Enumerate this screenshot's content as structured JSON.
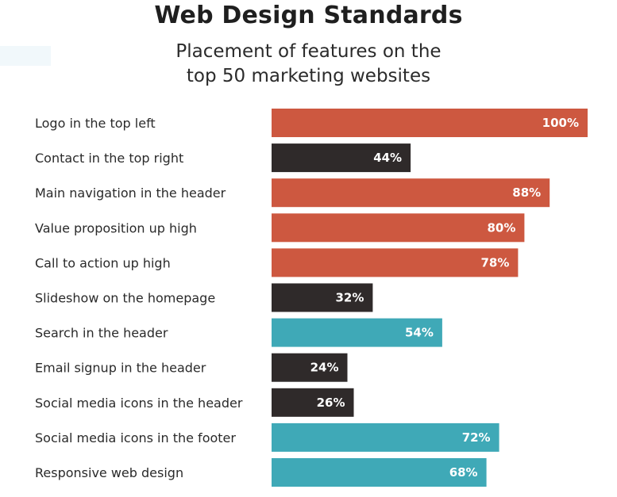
{
  "chart_data": {
    "type": "bar",
    "orientation": "horizontal",
    "title": "Web Design Standards",
    "subtitle_lines": [
      "Placement of features on the",
      "top 50 marketing websites"
    ],
    "categories": [
      "Logo in the top left",
      "Contact in the top right",
      "Main navigation in the header",
      "Value proposition up high",
      "Call to action up high",
      "Slideshow on the homepage",
      "Search in the header",
      "Email signup in the header",
      "Social media icons in the header",
      "Social media icons in the footer",
      "Responsive web design"
    ],
    "values": [
      100,
      44,
      88,
      80,
      78,
      32,
      54,
      24,
      26,
      72,
      68
    ],
    "value_labels": [
      "100%",
      "44%",
      "88%",
      "80%",
      "78%",
      "32%",
      "54%",
      "24%",
      "26%",
      "72%",
      "68%"
    ],
    "bar_colors": [
      "#cd5840",
      "#2f2a2a",
      "#cd5840",
      "#cd5840",
      "#cd5840",
      "#2f2a2a",
      "#3fa9b7",
      "#2f2a2a",
      "#2f2a2a",
      "#3fa9b7",
      "#3fa9b7"
    ],
    "xlim": [
      0,
      100
    ],
    "xlabel": "",
    "ylabel": "",
    "grid": false,
    "legend": "none"
  }
}
